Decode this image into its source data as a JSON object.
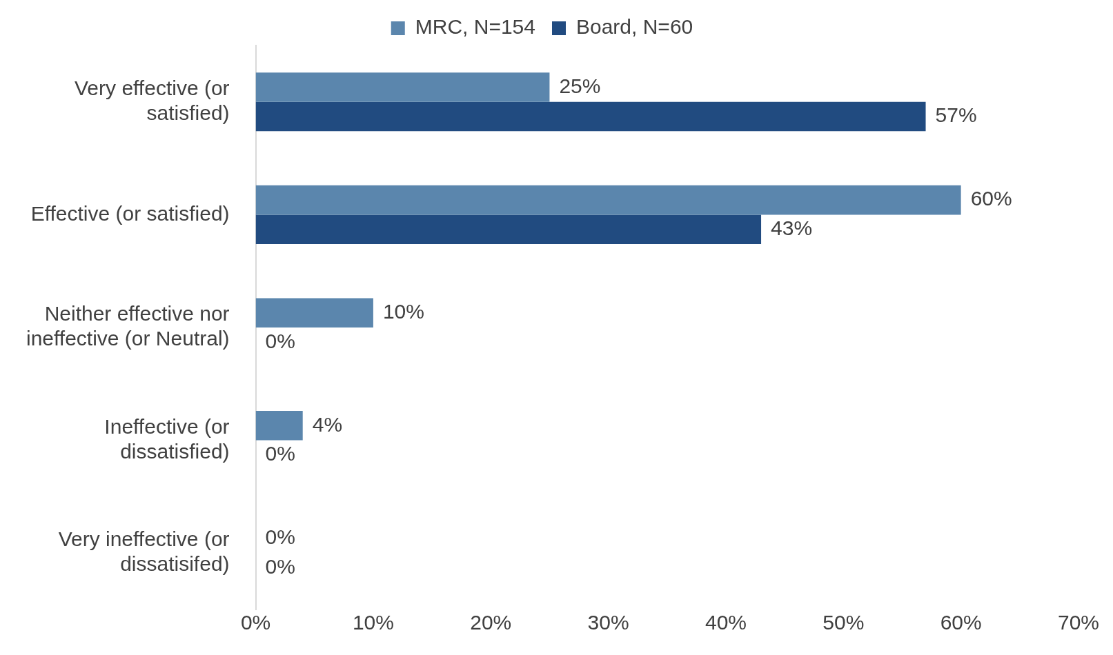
{
  "chart_data": {
    "type": "bar",
    "orientation": "horizontal",
    "categories": [
      "Very effective (or satisfied)",
      "Effective (or satisfied)",
      "Neither effective nor ineffective (or Neutral)",
      "Ineffective (or dissatisfied)",
      "Very ineffective (or dissatisifed)"
    ],
    "series": [
      {
        "name": "MRC, N=154",
        "color": "#5b86ad",
        "values": [
          25,
          60,
          10,
          4,
          0
        ],
        "value_labels": [
          "25%",
          "60%",
          "10%",
          "4%",
          "0%"
        ]
      },
      {
        "name": "Board, N=60",
        "color": "#214b80",
        "values": [
          57,
          43,
          0,
          0,
          0
        ],
        "value_labels": [
          "57%",
          "43%",
          "0%",
          "0%",
          "0%"
        ]
      }
    ],
    "xlim": [
      0,
      70
    ],
    "xticks": [
      {
        "value": 0,
        "label": "0%"
      },
      {
        "value": 10,
        "label": "10%"
      },
      {
        "value": 20,
        "label": "20%"
      },
      {
        "value": 30,
        "label": "30%"
      },
      {
        "value": 40,
        "label": "40%"
      },
      {
        "value": 50,
        "label": "50%"
      },
      {
        "value": 60,
        "label": "60%"
      },
      {
        "value": 70,
        "label": "70%"
      }
    ],
    "grid": false,
    "legend": "top"
  }
}
